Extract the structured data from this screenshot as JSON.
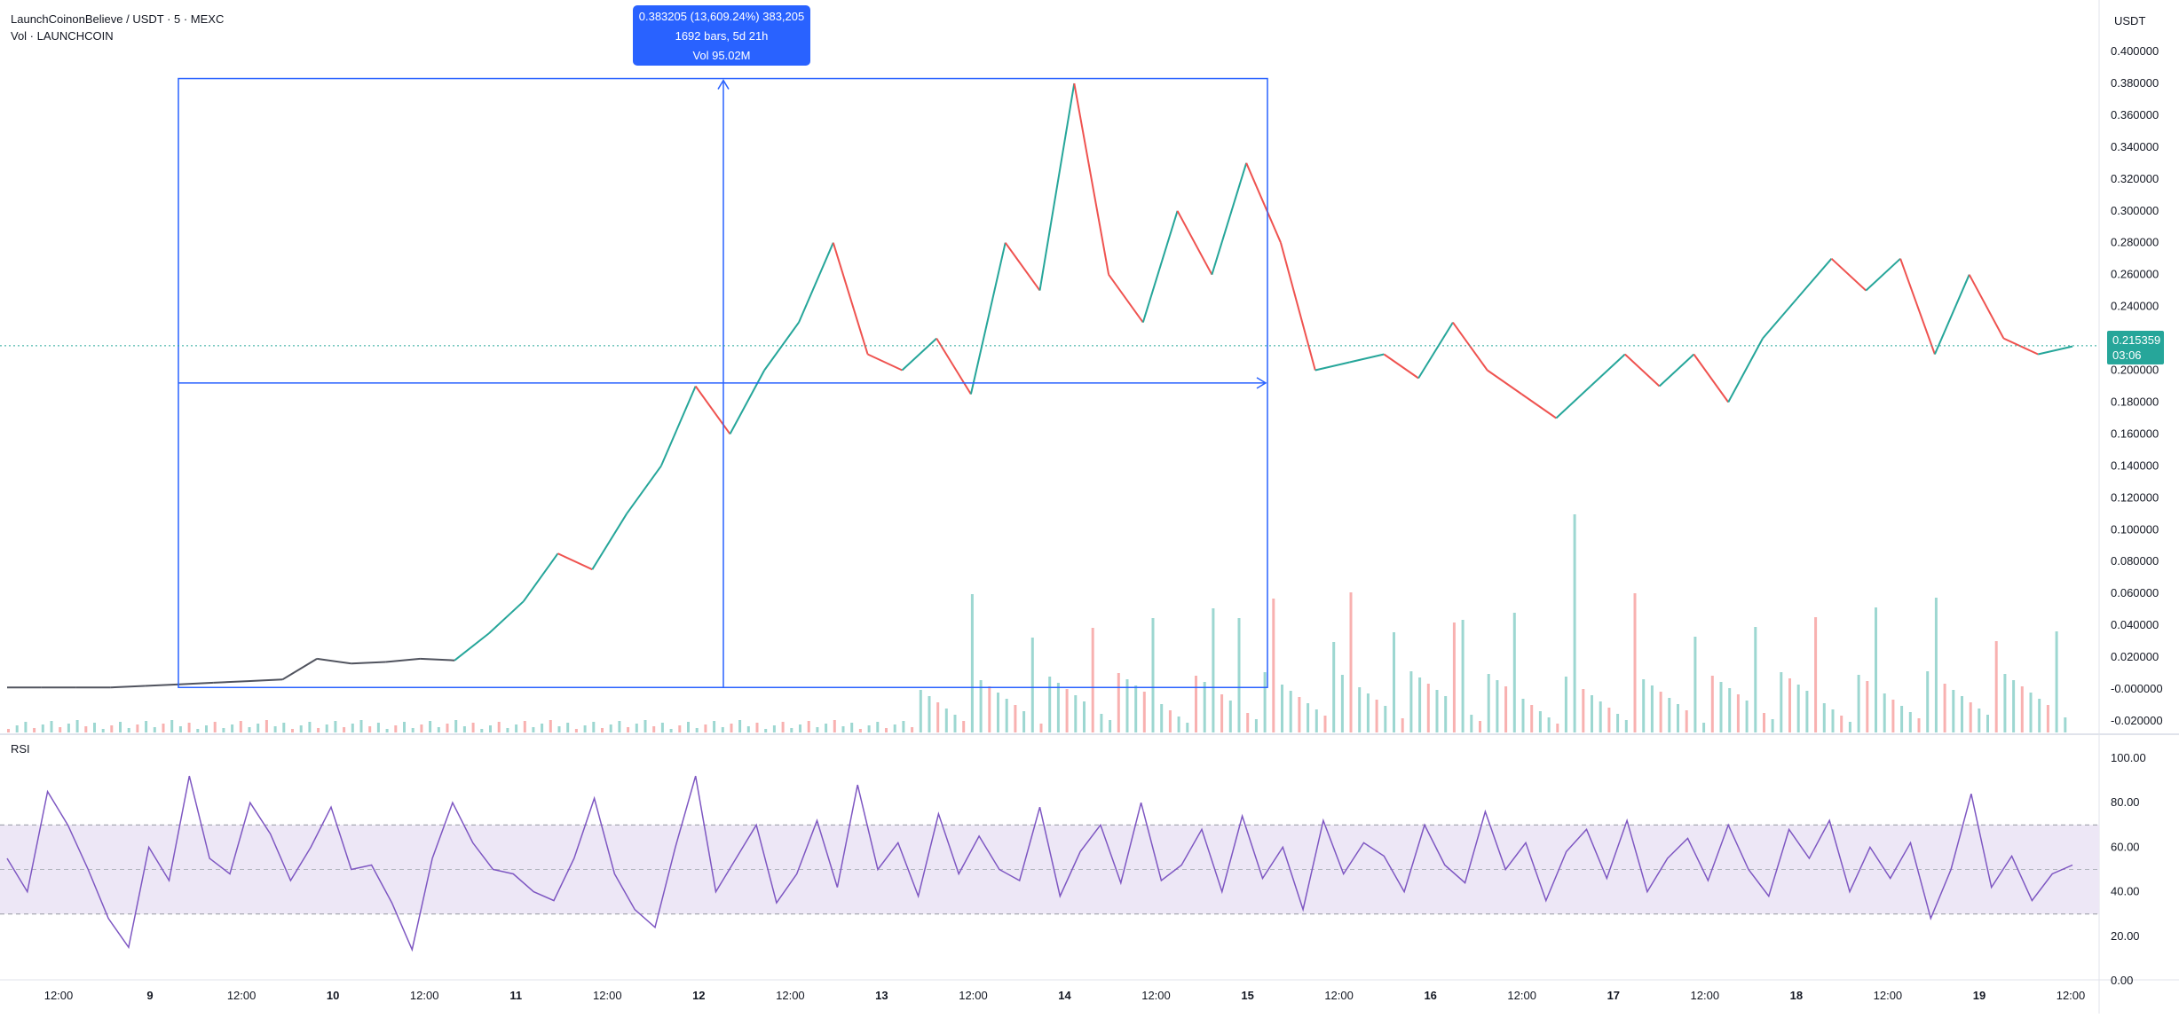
{
  "header": {
    "symbol_line": "LaunchCoinonBelieve / USDT · 5 · MEXC",
    "volume_line": "Vol · LAUNCHCOIN"
  },
  "rsi_panel": {
    "label": "RSI"
  },
  "price_axis": {
    "unit": "USDT"
  },
  "measure_tooltip": {
    "line1": "0.383205 (13,609.24%) 383,205",
    "line2": "1692 bars, 5d 21h",
    "line3": "Vol 95.02M"
  },
  "last_price": {
    "value": "0.215359",
    "countdown": "03:06"
  },
  "colors": {
    "up": "#26a69a",
    "down": "#ef5350",
    "measure": "#2962ff",
    "rsi_line": "#7e57c2",
    "rsi_band": "#ede7f6",
    "price_badge": "#26a69a"
  },
  "chart_data": [
    {
      "type": "line",
      "title": "",
      "xlabel": "",
      "ylabel": "USDT",
      "x_ticks": [
        "12:00",
        "9",
        "12:00",
        "10",
        "12:00",
        "11",
        "12:00",
        "12",
        "12:00",
        "13",
        "12:00",
        "14",
        "12:00",
        "15",
        "12:00",
        "16",
        "12:00",
        "17",
        "12:00",
        "18",
        "12:00",
        "19",
        "12:00"
      ],
      "y_ticks": [
        "0.400000",
        "0.380000",
        "0.360000",
        "0.340000",
        "0.320000",
        "0.300000",
        "0.280000",
        "0.260000",
        "0.240000",
        "0.220000",
        "0.200000",
        "0.180000",
        "0.160000",
        "0.140000",
        "0.120000",
        "0.100000",
        "0.080000",
        "0.060000",
        "0.040000",
        "0.020000",
        "-0.000000",
        "-0.020000"
      ],
      "ylim": [
        -0.022,
        0.404
      ],
      "grid": false,
      "series": [
        {
          "values": [
            0.001,
            0.001,
            0.001,
            0.001,
            0.002,
            0.003,
            0.004,
            0.005,
            0.006,
            0.019,
            0.016,
            0.017,
            0.019,
            0.018,
            0.035,
            0.055,
            0.085,
            0.075,
            0.11,
            0.14,
            0.19,
            0.16,
            0.2,
            0.23,
            0.28,
            0.21,
            0.2,
            0.22,
            0.185,
            0.28,
            0.25,
            0.38,
            0.26,
            0.23,
            0.3,
            0.26,
            0.33,
            0.28,
            0.2,
            0.205,
            0.21,
            0.195,
            0.23,
            0.2,
            0.185,
            0.17,
            0.19,
            0.21,
            0.19,
            0.21,
            0.18,
            0.22,
            0.245,
            0.27,
            0.25,
            0.27,
            0.21,
            0.26,
            0.22,
            0.21,
            0.215
          ]
        }
      ],
      "volume_bars_count": 240
    },
    {
      "type": "line",
      "title": "",
      "ylabel": "",
      "y_ticks": [
        "100.00",
        "80.00",
        "60.00",
        "40.00",
        "20.00",
        "0.00"
      ],
      "ylim": [
        0,
        100
      ],
      "bands": [
        30,
        50,
        70
      ],
      "series": [
        {
          "name": "RSI",
          "values": [
            55,
            40,
            85,
            70,
            50,
            28,
            15,
            60,
            45,
            92,
            55,
            48,
            80,
            66,
            45,
            60,
            78,
            50,
            52,
            35,
            14,
            55,
            80,
            62,
            50,
            48,
            40,
            36,
            55,
            82,
            48,
            32,
            24,
            60,
            92,
            40,
            55,
            70,
            35,
            48,
            72,
            42,
            88,
            50,
            62,
            38,
            75,
            48,
            65,
            50,
            45,
            78,
            38,
            58,
            70,
            44,
            80,
            45,
            52,
            68,
            40,
            74,
            46,
            60,
            32,
            72,
            48,
            62,
            56,
            40,
            70,
            52,
            44,
            76,
            50,
            62,
            36,
            58,
            68,
            46,
            72,
            40,
            55,
            64,
            45,
            70,
            50,
            38,
            68,
            55,
            72,
            40,
            60,
            46,
            62,
            28,
            50,
            84,
            42,
            56,
            36,
            48,
            52
          ]
        }
      ]
    }
  ]
}
